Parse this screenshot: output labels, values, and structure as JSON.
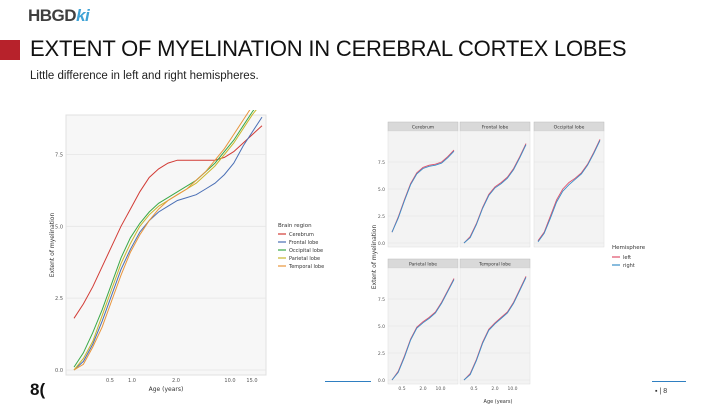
{
  "header": {
    "logo_main": "HBGD",
    "logo_ki": "ki",
    "title": "EXTENT OF MYELINATION IN CEREBRAL CORTEX LOBES",
    "subtitle": "Little difference in left and right hemispheres."
  },
  "footer": {
    "logo_text": "8(",
    "page_marker": "8"
  },
  "colors": {
    "accent": "#b7222b",
    "footer_line": "#2f7fc1",
    "Cerebrum": "#d23b35",
    "Frontal lobe": "#4a6fb5",
    "Occipital lobe": "#3aa848",
    "Parietal lobe": "#c9b62b",
    "Temporal lobe": "#e8953c",
    "left": "#e0506a",
    "right": "#3a8fc9"
  },
  "chart_data": [
    {
      "type": "line",
      "ylabel": "Extent of myelination",
      "xlabel": "Age (years)",
      "x_ticks": [
        "0.5",
        "1.0",
        "2.0",
        "10.0",
        "15.0"
      ],
      "y_ticks": [
        "0.0",
        "2.5",
        "5.0",
        "7.5"
      ],
      "ylim": [
        0,
        8.7
      ],
      "x": [
        0,
        0.05,
        0.1,
        0.15,
        0.2,
        0.25,
        0.3,
        0.35,
        0.4,
        0.45,
        0.5,
        0.55,
        0.6,
        0.65,
        0.7,
        0.75,
        0.8,
        0.85,
        0.9,
        0.95,
        1.0
      ],
      "legend_title": "Brain region",
      "legend_placement": "right",
      "grid": true,
      "series": [
        {
          "name": "Cerebrum",
          "values": [
            1.8,
            2.3,
            2.9,
            3.6,
            4.3,
            5.0,
            5.6,
            6.2,
            6.7,
            7.0,
            7.2,
            7.3,
            7.3,
            7.3,
            7.3,
            7.3,
            7.4,
            7.6,
            7.9,
            8.2,
            8.5
          ]
        },
        {
          "name": "Frontal lobe",
          "values": [
            0.0,
            0.3,
            0.9,
            1.7,
            2.6,
            3.5,
            4.2,
            4.8,
            5.2,
            5.5,
            5.7,
            5.9,
            6.0,
            6.1,
            6.3,
            6.5,
            6.8,
            7.2,
            7.8,
            8.3,
            8.8
          ]
        },
        {
          "name": "Occipital lobe",
          "values": [
            0.1,
            0.6,
            1.3,
            2.1,
            3.0,
            3.9,
            4.6,
            5.1,
            5.5,
            5.8,
            6.0,
            6.2,
            6.4,
            6.6,
            6.9,
            7.2,
            7.6,
            8.0,
            8.5,
            9.0,
            9.4
          ]
        },
        {
          "name": "Parietal lobe",
          "values": [
            0.0,
            0.4,
            1.0,
            1.9,
            2.8,
            3.7,
            4.4,
            5.0,
            5.4,
            5.7,
            5.9,
            6.1,
            6.3,
            6.5,
            6.8,
            7.1,
            7.5,
            7.9,
            8.4,
            8.9,
            9.3
          ]
        },
        {
          "name": "Temporal lobe",
          "values": [
            0.0,
            0.2,
            0.8,
            1.5,
            2.4,
            3.3,
            4.1,
            4.7,
            5.2,
            5.6,
            5.9,
            6.1,
            6.3,
            6.6,
            6.9,
            7.3,
            7.7,
            8.2,
            8.7,
            9.2,
            9.6
          ]
        }
      ]
    },
    {
      "type": "line",
      "ylabel": "Extent of myelination",
      "xlabel": "Age (years)",
      "panels": [
        "Cerebrum",
        "Frontal lobe",
        "Occipital lobe",
        "Parietal lobe",
        "Temporal lobe"
      ],
      "y_ticks": [
        "0.0",
        "2.5",
        "5.0",
        "7.5"
      ],
      "x_ticks": [
        "0.5",
        "2.0",
        "10.0"
      ],
      "ylim": [
        0,
        10
      ],
      "legend_title": "Hemisphere",
      "legend_entries": [
        "left",
        "right"
      ],
      "legend_placement": "right",
      "grid": true,
      "x": [
        0,
        0.1,
        0.2,
        0.3,
        0.4,
        0.5,
        0.6,
        0.7,
        0.8,
        0.9,
        1.0
      ],
      "series": [
        {
          "panel": "Cerebrum",
          "name": "left",
          "values": [
            1.0,
            2.4,
            4.0,
            5.5,
            6.5,
            7.0,
            7.2,
            7.3,
            7.5,
            8.0,
            8.6
          ]
        },
        {
          "panel": "Cerebrum",
          "name": "right",
          "values": [
            1.0,
            2.3,
            3.9,
            5.4,
            6.4,
            6.9,
            7.1,
            7.2,
            7.4,
            7.9,
            8.5
          ]
        },
        {
          "panel": "Frontal lobe",
          "name": "left",
          "values": [
            0.0,
            0.6,
            1.8,
            3.3,
            4.5,
            5.2,
            5.6,
            6.1,
            6.9,
            8.0,
            9.2
          ]
        },
        {
          "panel": "Frontal lobe",
          "name": "right",
          "values": [
            0.0,
            0.5,
            1.7,
            3.2,
            4.4,
            5.1,
            5.5,
            6.0,
            6.8,
            7.9,
            9.1
          ]
        },
        {
          "panel": "Occipital lobe",
          "name": "left",
          "values": [
            0.2,
            1.0,
            2.5,
            4.0,
            5.0,
            5.6,
            6.0,
            6.5,
            7.3,
            8.4,
            9.6
          ]
        },
        {
          "panel": "Occipital lobe",
          "name": "right",
          "values": [
            0.1,
            0.9,
            2.3,
            3.8,
            4.8,
            5.4,
            5.9,
            6.4,
            7.2,
            8.3,
            9.5
          ]
        },
        {
          "panel": "Parietal lobe",
          "name": "left",
          "values": [
            0.0,
            0.8,
            2.2,
            3.8,
            4.9,
            5.4,
            5.8,
            6.3,
            7.2,
            8.3,
            9.4
          ]
        },
        {
          "panel": "Parietal lobe",
          "name": "right",
          "values": [
            0.0,
            0.7,
            2.1,
            3.7,
            4.8,
            5.3,
            5.7,
            6.2,
            7.1,
            8.2,
            9.3
          ]
        },
        {
          "panel": "Temporal lobe",
          "name": "left",
          "values": [
            0.0,
            0.6,
            1.9,
            3.5,
            4.7,
            5.3,
            5.8,
            6.3,
            7.2,
            8.4,
            9.6
          ]
        },
        {
          "panel": "Temporal lobe",
          "name": "right",
          "values": [
            0.0,
            0.5,
            1.8,
            3.4,
            4.6,
            5.2,
            5.7,
            6.2,
            7.1,
            8.3,
            9.5
          ]
        }
      ]
    }
  ]
}
